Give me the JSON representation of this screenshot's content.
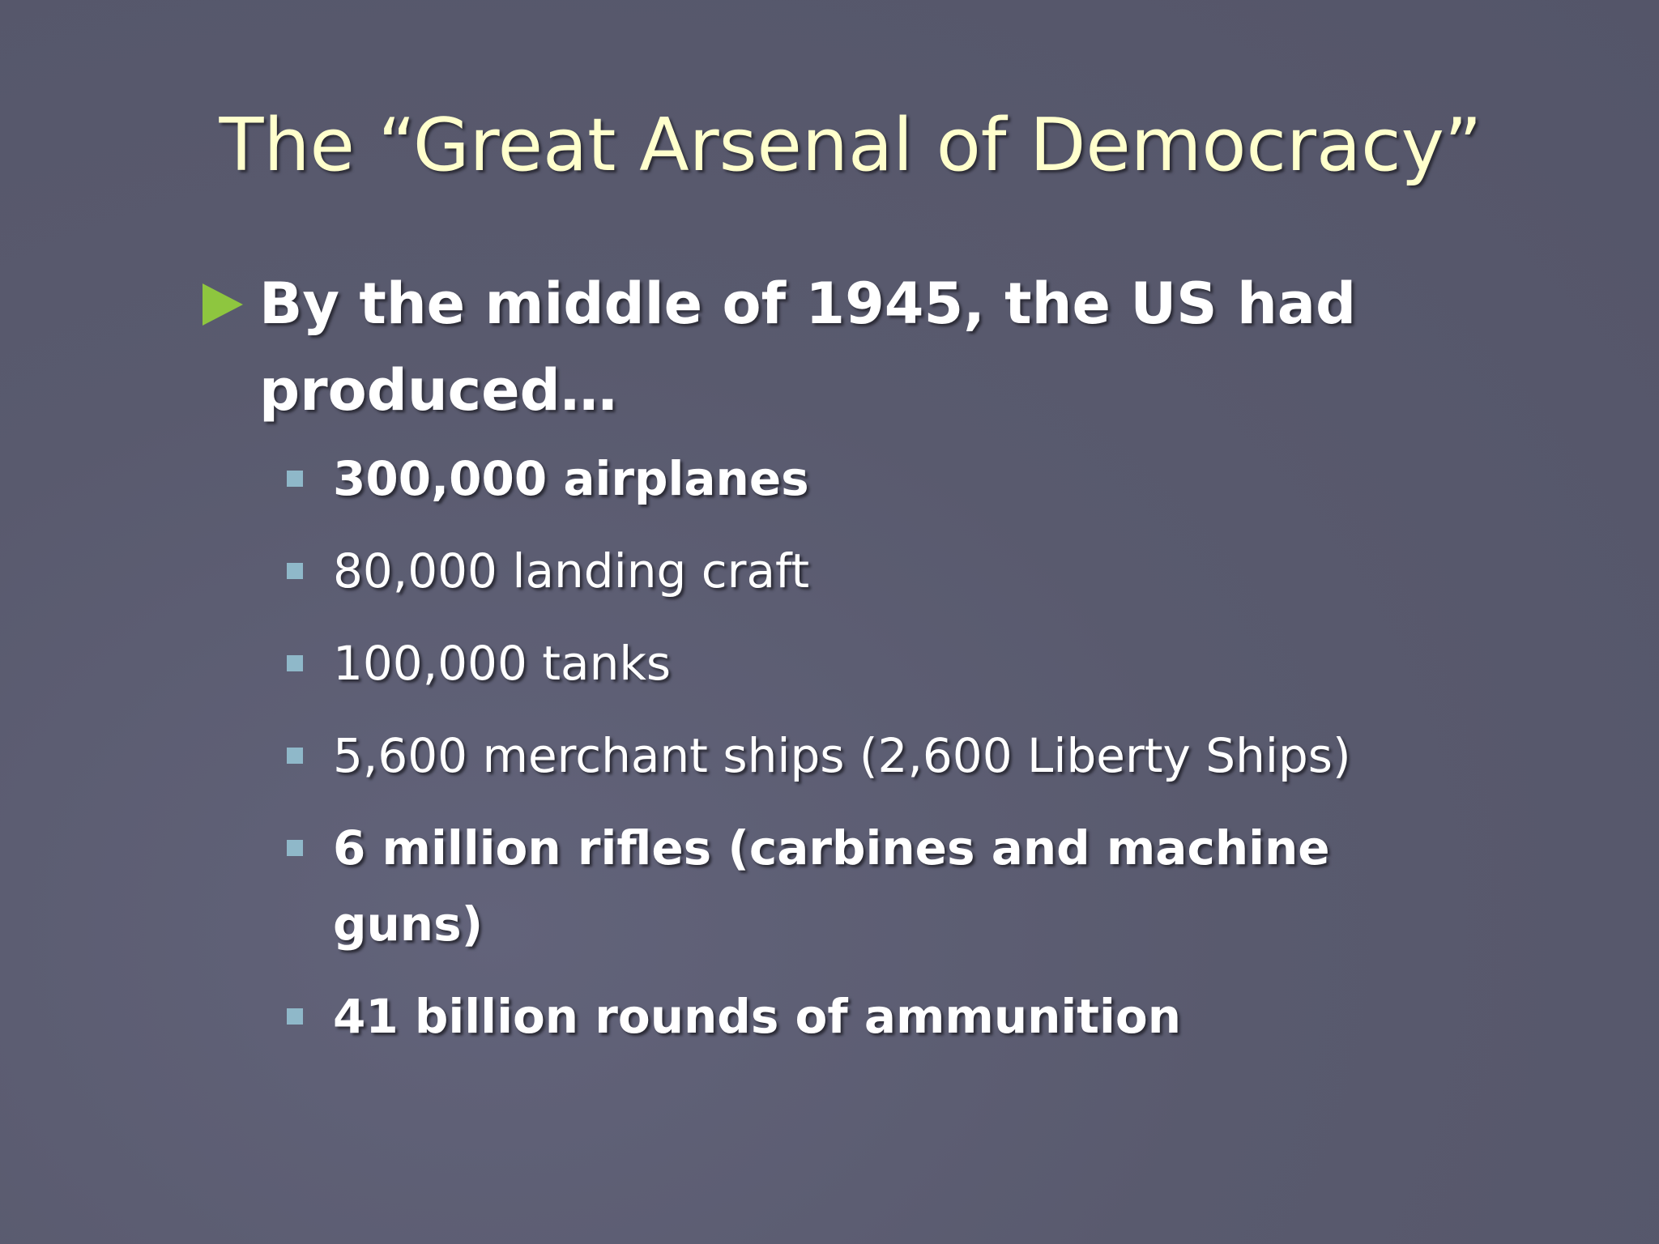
{
  "slide": {
    "title": "The “Great Arsenal of Democracy”",
    "main_bullet": "By the middle of 1945, the US had produced…",
    "items": [
      {
        "text": "300,000 airplanes",
        "bold": true
      },
      {
        "text": "80,000 landing craft",
        "bold": false
      },
      {
        "text": "100,000 tanks",
        "bold": false
      },
      {
        "text": "5,600 merchant ships (2,600 Liberty Ships)",
        "bold": false
      },
      {
        "text": "6 million rifles (carbines and machine guns)",
        "bold": true
      },
      {
        "text": "41 billion rounds of ammunition",
        "bold": true
      }
    ]
  }
}
